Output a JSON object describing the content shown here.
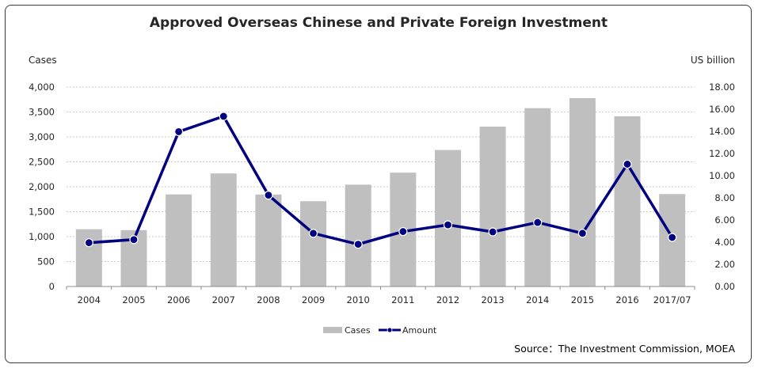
{
  "chart_data": {
    "type": "bar+line",
    "title": "Approved Overseas Chinese and Private Foreign Investment",
    "y_left_label": "Cases",
    "y_right_label": "US billion",
    "categories": [
      "2004",
      "2005",
      "2006",
      "2007",
      "2008",
      "2009",
      "2010",
      "2011",
      "2012",
      "2013",
      "2014",
      "2015",
      "2016",
      "2017/07"
    ],
    "series": [
      {
        "name": "Cases",
        "type": "bar",
        "axis": "left",
        "color": "#bfbfbf",
        "values": [
          1149,
          1131,
          1847,
          2267,
          1845,
          1711,
          2042,
          2283,
          2738,
          3206,
          3577,
          3778,
          3413,
          1853
        ]
      },
      {
        "name": "Amount",
        "type": "line",
        "axis": "right",
        "color": "#000080",
        "values": [
          3.95,
          4.23,
          13.97,
          15.36,
          8.24,
          4.8,
          3.81,
          4.96,
          5.56,
          4.93,
          5.78,
          4.8,
          11.04,
          4.43
        ]
      }
    ],
    "y_left": {
      "min": 0,
      "max": 4000,
      "ticks": [
        "0",
        "500",
        "1,000",
        "1,500",
        "2,000",
        "2,500",
        "3,000",
        "3,500",
        "4,000"
      ]
    },
    "y_right": {
      "min": 0,
      "max": 18,
      "ticks": [
        "0.00",
        "2.00",
        "4.00",
        "6.00",
        "8.00",
        "10.00",
        "12.00",
        "14.00",
        "16.00",
        "18.00"
      ]
    },
    "grid": true,
    "legend_position": "bottom"
  },
  "source_text": "Source：The Investment Commission, MOEA"
}
